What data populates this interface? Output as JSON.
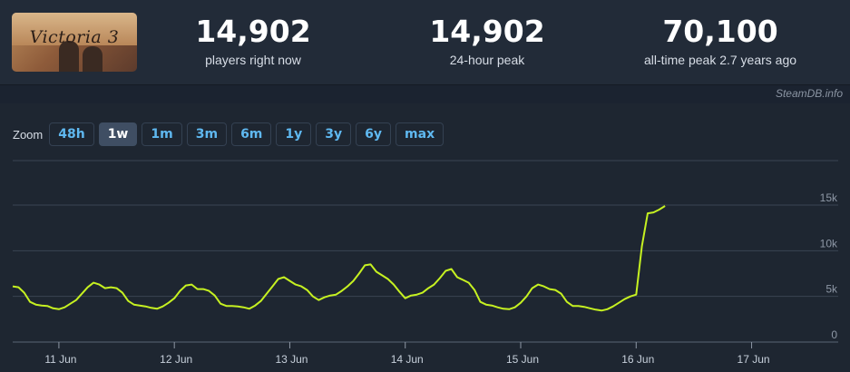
{
  "game": {
    "thumb_logo": "Victoria 3"
  },
  "stats": [
    {
      "value": "14,902",
      "label": "players right now"
    },
    {
      "value": "14,902",
      "label": "24-hour peak"
    },
    {
      "value": "70,100",
      "label": "all-time peak 2.7 years ago"
    }
  ],
  "credit": "SteamDB.info",
  "zoom": {
    "label": "Zoom",
    "options": [
      "48h",
      "1w",
      "1m",
      "3m",
      "6m",
      "1y",
      "3y",
      "6y",
      "max"
    ],
    "active": "1w"
  },
  "colors": {
    "line": "#c6f121",
    "grid": "#3a4452",
    "active_zoom": "#3f4e63"
  },
  "chart_data": {
    "type": "line",
    "title": "",
    "xlabel": "",
    "ylabel": "",
    "ylim": [
      0,
      15000
    ],
    "y_ticks": [
      0,
      5000,
      10000,
      15000
    ],
    "y_tick_labels": [
      "0",
      "5k",
      "10k",
      "15k"
    ],
    "x_ticks": [
      11,
      12,
      13,
      14,
      15,
      16,
      17
    ],
    "x_tick_labels": [
      "11 Jun",
      "12 Jun",
      "13 Jun",
      "14 Jun",
      "15 Jun",
      "16 Jun",
      "17 Jun"
    ],
    "xlim": [
      10.6,
      17.75
    ],
    "grid": true,
    "series": [
      {
        "values": [
          [
            10.6,
            6100
          ],
          [
            10.65,
            6000
          ],
          [
            10.7,
            5400
          ],
          [
            10.75,
            4400
          ],
          [
            10.8,
            4100
          ],
          [
            10.85,
            4000
          ],
          [
            10.9,
            3950
          ],
          [
            10.95,
            3700
          ],
          [
            11.0,
            3600
          ],
          [
            11.05,
            3800
          ],
          [
            11.1,
            4200
          ],
          [
            11.15,
            4600
          ],
          [
            11.2,
            5300
          ],
          [
            11.25,
            6000
          ],
          [
            11.3,
            6500
          ],
          [
            11.35,
            6300
          ],
          [
            11.4,
            5900
          ],
          [
            11.45,
            6000
          ],
          [
            11.5,
            5900
          ],
          [
            11.55,
            5400
          ],
          [
            11.6,
            4500
          ],
          [
            11.65,
            4100
          ],
          [
            11.7,
            4000
          ],
          [
            11.75,
            3900
          ],
          [
            11.8,
            3750
          ],
          [
            11.85,
            3650
          ],
          [
            11.9,
            3900
          ],
          [
            11.95,
            4300
          ],
          [
            12.0,
            4800
          ],
          [
            12.05,
            5600
          ],
          [
            12.1,
            6200
          ],
          [
            12.15,
            6300
          ],
          [
            12.2,
            5800
          ],
          [
            12.25,
            5800
          ],
          [
            12.3,
            5600
          ],
          [
            12.35,
            5100
          ],
          [
            12.4,
            4200
          ],
          [
            12.45,
            3950
          ],
          [
            12.5,
            3950
          ],
          [
            12.55,
            3900
          ],
          [
            12.6,
            3800
          ],
          [
            12.65,
            3650
          ],
          [
            12.7,
            4000
          ],
          [
            12.75,
            4500
          ],
          [
            12.8,
            5300
          ],
          [
            12.85,
            6100
          ],
          [
            12.9,
            6900
          ],
          [
            12.95,
            7100
          ],
          [
            13.0,
            6700
          ],
          [
            13.05,
            6300
          ],
          [
            13.1,
            6100
          ],
          [
            13.15,
            5700
          ],
          [
            13.2,
            5000
          ],
          [
            13.25,
            4600
          ],
          [
            13.3,
            4900
          ],
          [
            13.35,
            5100
          ],
          [
            13.4,
            5200
          ],
          [
            13.45,
            5600
          ],
          [
            13.5,
            6100
          ],
          [
            13.55,
            6700
          ],
          [
            13.6,
            7500
          ],
          [
            13.65,
            8400
          ],
          [
            13.7,
            8500
          ],
          [
            13.75,
            7700
          ],
          [
            13.8,
            7300
          ],
          [
            13.85,
            6900
          ],
          [
            13.9,
            6300
          ],
          [
            13.95,
            5500
          ],
          [
            14.0,
            4800
          ],
          [
            14.05,
            5100
          ],
          [
            14.1,
            5200
          ],
          [
            14.15,
            5400
          ],
          [
            14.2,
            5900
          ],
          [
            14.25,
            6300
          ],
          [
            14.3,
            7000
          ],
          [
            14.35,
            7800
          ],
          [
            14.4,
            8000
          ],
          [
            14.45,
            7100
          ],
          [
            14.5,
            6800
          ],
          [
            14.55,
            6500
          ],
          [
            14.6,
            5700
          ],
          [
            14.65,
            4400
          ],
          [
            14.7,
            4100
          ],
          [
            14.75,
            4000
          ],
          [
            14.8,
            3800
          ],
          [
            14.85,
            3650
          ],
          [
            14.9,
            3600
          ],
          [
            14.95,
            3800
          ],
          [
            15.0,
            4300
          ],
          [
            15.05,
            5000
          ],
          [
            15.1,
            5900
          ],
          [
            15.15,
            6300
          ],
          [
            15.2,
            6100
          ],
          [
            15.25,
            5800
          ],
          [
            15.3,
            5700
          ],
          [
            15.35,
            5300
          ],
          [
            15.4,
            4400
          ],
          [
            15.45,
            3950
          ],
          [
            15.5,
            3950
          ],
          [
            15.55,
            3850
          ],
          [
            15.6,
            3700
          ],
          [
            15.65,
            3550
          ],
          [
            15.7,
            3450
          ],
          [
            15.75,
            3600
          ],
          [
            15.8,
            3900
          ],
          [
            15.85,
            4300
          ],
          [
            15.9,
            4700
          ],
          [
            15.95,
            5000
          ],
          [
            16.0,
            5200
          ],
          [
            16.05,
            10500
          ],
          [
            16.1,
            14100
          ],
          [
            16.15,
            14200
          ],
          [
            16.2,
            14500
          ],
          [
            16.25,
            14900
          ]
        ]
      }
    ]
  }
}
